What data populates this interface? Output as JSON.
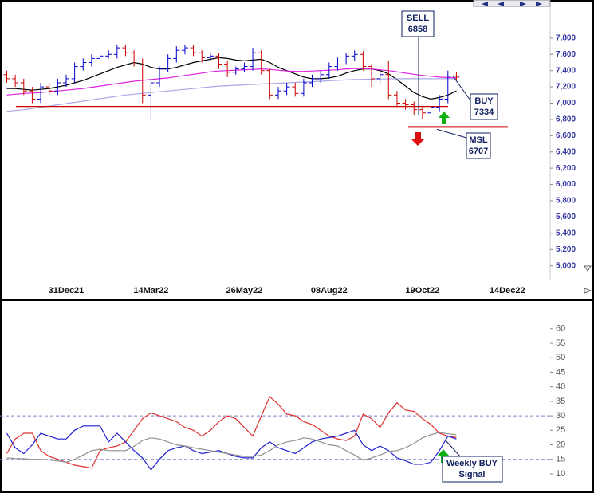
{
  "chart_data": [
    {
      "type": "ohlc",
      "categories": [
        null,
        null,
        null,
        null,
        null,
        null,
        null,
        "31Dec21",
        null,
        null,
        null,
        null,
        null,
        null,
        null,
        null,
        null,
        "14Mar22",
        null,
        null,
        null,
        null,
        null,
        null,
        null,
        null,
        null,
        null,
        "26May22",
        null,
        null,
        null,
        null,
        null,
        null,
        null,
        null,
        null,
        "08Aug22",
        null,
        null,
        null,
        null,
        null,
        null,
        null,
        null,
        null,
        null,
        "19Oct22",
        null,
        null,
        null,
        null,
        null,
        null,
        null,
        null,
        null,
        "14Dec22",
        null,
        null,
        null,
        null,
        null
      ],
      "open": [
        7350,
        7300,
        7250,
        7150,
        7050,
        7200,
        7150,
        7250,
        7300,
        7450,
        7500,
        7550,
        7580,
        7600,
        7680,
        7620,
        7520,
        7100,
        7250,
        7420,
        7550,
        7650,
        7680,
        7620,
        7560,
        7580,
        7480,
        7380,
        7420,
        7450,
        7620,
        7400,
        7100,
        7150,
        7200,
        7120,
        7250,
        7300,
        7350,
        7450,
        7520,
        7580,
        7600,
        7450,
        7300,
        7350,
        7100,
        7000,
        6980,
        6920,
        6880,
        6950,
        7050,
        7330,
        null,
        null,
        null,
        null,
        null,
        null,
        null,
        null,
        null,
        null,
        null
      ],
      "high": [
        7400,
        7350,
        7300,
        7200,
        7250,
        7250,
        7300,
        7350,
        7500,
        7550,
        7600,
        7620,
        7650,
        7720,
        7720,
        7650,
        7550,
        7300,
        7450,
        7600,
        7700,
        7720,
        7720,
        7650,
        7620,
        7620,
        7520,
        7450,
        7500,
        7680,
        7650,
        7420,
        7200,
        7250,
        7250,
        7300,
        7350,
        7400,
        7500,
        7560,
        7620,
        7650,
        7640,
        7480,
        7400,
        7520,
        7150,
        7050,
        7020,
        6960,
        7000,
        7100,
        7400,
        7380,
        null,
        null,
        null,
        null,
        null,
        null,
        null,
        null,
        null,
        null,
        null
      ],
      "low": [
        7250,
        7200,
        7100,
        7000,
        7000,
        7100,
        7100,
        7200,
        7250,
        7400,
        7450,
        7500,
        7550,
        7550,
        7580,
        7450,
        7000,
        6800,
        7200,
        7380,
        7500,
        7600,
        7580,
        7500,
        7520,
        7420,
        7320,
        7350,
        7380,
        7400,
        7350,
        7050,
        7050,
        7100,
        7080,
        7080,
        7200,
        7250,
        7300,
        7400,
        7480,
        7520,
        7400,
        7200,
        7250,
        7050,
        6950,
        6920,
        6850,
        6800,
        6820,
        6900,
        7000,
        7280,
        null,
        null,
        null,
        null,
        null,
        null,
        null,
        null,
        null,
        null,
        null
      ],
      "close": [
        7300,
        7250,
        7150,
        7050,
        7200,
        7150,
        7250,
        7300,
        7450,
        7500,
        7550,
        7580,
        7600,
        7680,
        7620,
        7520,
        7100,
        7250,
        7420,
        7550,
        7650,
        7680,
        7620,
        7560,
        7580,
        7480,
        7380,
        7420,
        7450,
        7620,
        7400,
        7100,
        7150,
        7200,
        7120,
        7250,
        7300,
        7350,
        7450,
        7520,
        7580,
        7600,
        7450,
        7300,
        7350,
        7100,
        7000,
        6980,
        6920,
        6880,
        6950,
        7050,
        7330,
        7320,
        null,
        null,
        null,
        null,
        null,
        null,
        null,
        null,
        null,
        null,
        null
      ],
      "up_color": "#0000cc",
      "down_color": "#cc0000",
      "series": [
        {
          "color": "#000000",
          "values": [
            7180,
            7180,
            7170,
            7160,
            7170,
            7180,
            7200,
            7220,
            7250,
            7280,
            7320,
            7360,
            7400,
            7440,
            7470,
            7500,
            7480,
            7440,
            7420,
            7420,
            7440,
            7470,
            7500,
            7520,
            7540,
            7560,
            7550,
            7530,
            7520,
            7530,
            7540,
            7500,
            7440,
            7400,
            7360,
            7320,
            7300,
            7300,
            7310,
            7330,
            7370,
            7400,
            7420,
            7420,
            7400,
            7360,
            7290,
            7210,
            7130,
            7080,
            7050,
            7070,
            7100,
            7150,
            null,
            null,
            null,
            null,
            null,
            null,
            null,
            null,
            null,
            null,
            null
          ]
        },
        {
          "color": "#e020e0",
          "values": [
            7100,
            7110,
            7120,
            7125,
            7130,
            7140,
            7150,
            7160,
            7170,
            7180,
            7195,
            7210,
            7225,
            7240,
            7255,
            7270,
            7280,
            7290,
            7300,
            7310,
            7325,
            7340,
            7355,
            7370,
            7385,
            7395,
            7400,
            7405,
            7410,
            7415,
            7420,
            7415,
            7405,
            7395,
            7390,
            7390,
            7395,
            7400,
            7405,
            7410,
            7420,
            7425,
            7425,
            7420,
            7410,
            7400,
            7385,
            7370,
            7355,
            7340,
            7330,
            7320,
            7315,
            7310,
            null,
            null,
            null,
            null,
            null,
            null,
            null,
            null,
            null,
            null,
            null
          ]
        },
        {
          "color": "#a8a8e8",
          "values": [
            6900,
            6910,
            6920,
            6935,
            6950,
            6965,
            6980,
            6995,
            7010,
            7025,
            7040,
            7055,
            7070,
            7085,
            7100,
            7110,
            7120,
            7130,
            7140,
            7150,
            7160,
            7170,
            7180,
            7190,
            7200,
            7210,
            7215,
            7220,
            7225,
            7230,
            7235,
            7240,
            7245,
            7250,
            7255,
            7260,
            7265,
            7270,
            7275,
            7280,
            7285,
            7290,
            7292,
            7295,
            7297,
            7298,
            7300,
            7300,
            7300,
            7300,
            7300,
            7300,
            7300,
            7300,
            null,
            null,
            null,
            null,
            null,
            null,
            null,
            null,
            null,
            null,
            null
          ]
        }
      ],
      "hlines": [
        {
          "value": 6960,
          "color": "#cc0000"
        }
      ],
      "annotations": [
        {
          "text": "SELL",
          "value": 6858
        },
        {
          "text": "BUY",
          "value": 7334
        },
        {
          "text": "MSL",
          "value": 6707
        }
      ],
      "ylim": [
        4820,
        8220
      ],
      "yticks": [
        {
          "value": 5000,
          "label": "5,000"
        },
        {
          "value": 5200,
          "label": "5,200"
        },
        {
          "value": 5400,
          "label": "5,400"
        },
        {
          "value": 5600,
          "label": "5,600"
        },
        {
          "value": 5800,
          "label": "5,800"
        },
        {
          "value": 6000,
          "label": "6,000"
        },
        {
          "value": 6200,
          "label": "6,200"
        },
        {
          "value": 6400,
          "label": "6,400"
        },
        {
          "value": 6600,
          "label": "6,600"
        },
        {
          "value": 6800,
          "label": "6,800"
        },
        {
          "value": 7000,
          "label": "7,000"
        },
        {
          "value": 7200,
          "label": "7,200"
        },
        {
          "value": 7400,
          "label": "7,400"
        },
        {
          "value": 7600,
          "label": "7,600"
        },
        {
          "value": 7800,
          "label": "7,800"
        }
      ]
    },
    {
      "type": "line",
      "series": [
        {
          "color": "#e03030",
          "values": [
            17,
            22,
            24,
            24,
            18,
            16,
            15,
            14,
            13,
            12.5,
            12,
            18,
            19,
            19.6,
            21,
            25,
            29,
            31,
            30,
            29,
            28,
            26,
            25,
            23,
            25,
            28,
            30,
            29,
            26,
            23,
            30,
            36.6,
            34,
            30.6,
            30,
            28,
            27,
            25,
            23,
            22,
            21.5,
            23,
            30.6,
            29,
            26,
            31,
            34.5,
            32,
            31.5,
            29,
            27,
            24,
            23,
            22.5,
            null,
            null,
            null,
            null,
            null,
            null,
            null,
            null,
            null,
            null,
            null
          ]
        },
        {
          "color": "#2020d0",
          "values": [
            24,
            19,
            17,
            20,
            24,
            23,
            22,
            22,
            25,
            26.5,
            26.5,
            26.5,
            21,
            24,
            21,
            18,
            15.5,
            11.4,
            15,
            18,
            19,
            19.6,
            18,
            17,
            17.5,
            18,
            17,
            16,
            15.5,
            15.5,
            19,
            21,
            19,
            18,
            17,
            19,
            21,
            22,
            22.5,
            23,
            24,
            25,
            20,
            18,
            19.6,
            18,
            15.5,
            14.5,
            13.3,
            13.3,
            14,
            18,
            23,
            22,
            null,
            null,
            null,
            null,
            null,
            null,
            null,
            null,
            null,
            null,
            null
          ]
        },
        {
          "color": "#909090",
          "values": [
            15.5,
            15.3,
            15.2,
            15,
            15,
            14.8,
            14.5,
            14,
            15,
            16.5,
            18,
            18.5,
            18,
            18,
            18,
            19.5,
            21.5,
            22.4,
            22,
            21,
            20,
            19.6,
            19,
            18.5,
            18,
            17.5,
            17,
            16.5,
            16,
            16,
            16.5,
            18,
            20,
            21,
            21.5,
            22.4,
            22,
            21,
            20,
            19.6,
            18,
            16.5,
            14.7,
            15.5,
            16.5,
            17.7,
            18,
            19,
            20.5,
            22.4,
            23.5,
            24.3,
            23.8,
            23.5,
            null,
            null,
            null,
            null,
            null,
            null,
            null,
            null,
            null,
            null,
            null
          ]
        }
      ],
      "ref_lines": [
        30,
        15
      ],
      "ref_color": "#8080c8",
      "annotations": [
        {
          "lines": [
            "Weekly BUY",
            "Signal"
          ]
        }
      ],
      "ylim": [
        4.5,
        69
      ],
      "yticks": [
        10,
        15,
        20,
        25,
        30,
        35,
        40,
        45,
        50,
        55,
        60
      ]
    }
  ]
}
